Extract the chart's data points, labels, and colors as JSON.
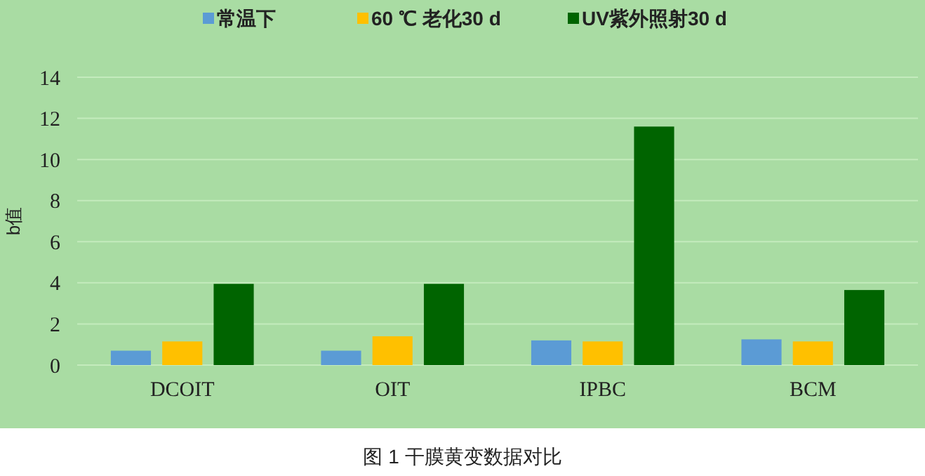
{
  "chart_data": {
    "type": "bar",
    "ylabel": "b值",
    "categories": [
      "DCOIT",
      "OIT",
      "IPBC",
      "BCM"
    ],
    "series": [
      {
        "name": "常温下",
        "color": "#5b9bd5",
        "values": [
          0.7,
          0.7,
          1.2,
          1.25
        ]
      },
      {
        "name": "60 ℃  老化30 d",
        "color": "#ffc000",
        "values": [
          1.15,
          1.4,
          1.15,
          1.15
        ]
      },
      {
        "name": "UV紫外照射30 d",
        "color": "#006400",
        "values": [
          3.95,
          3.95,
          11.6,
          3.65
        ]
      }
    ],
    "ylim": [
      0,
      14
    ],
    "yticks": [
      0,
      2,
      4,
      6,
      8,
      10,
      12,
      14
    ],
    "grid": "y",
    "legend": "top",
    "annotations": [
      "图 1 干膜黄变数据对比"
    ]
  }
}
